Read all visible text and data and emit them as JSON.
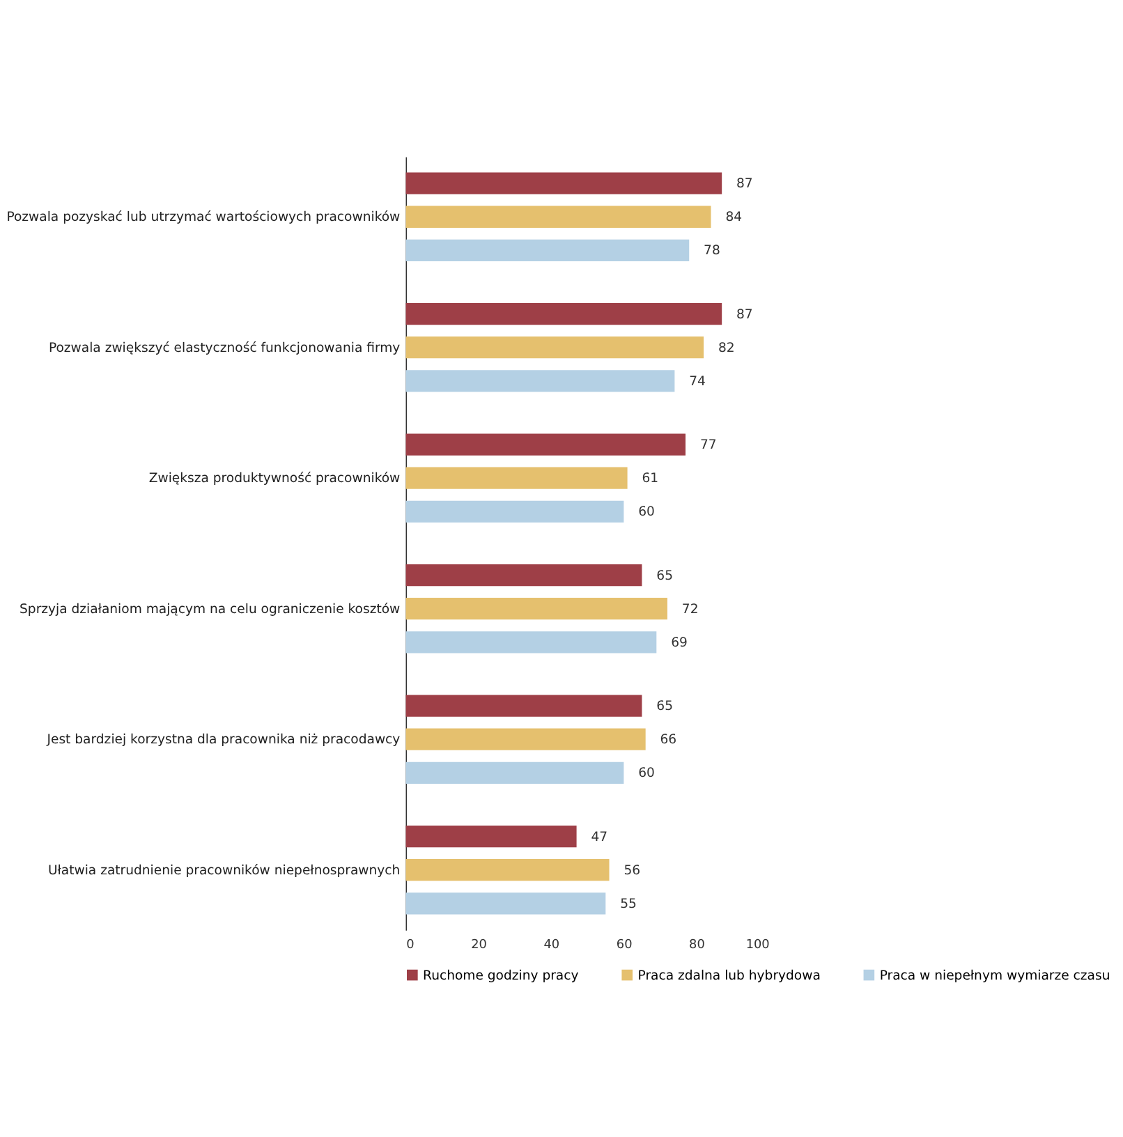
{
  "chart_data": {
    "type": "bar",
    "orientation": "horizontal",
    "categories": [
      "Pozwala pozyskać lub utrzymać wartościowych pracowników",
      "Pozwala zwiększyć elastyczność funkcjonowania firmy",
      "Zwiększa produktywność pracowników",
      "Sprzyja działaniom mającym na celu ograniczenie kosztów",
      "Jest bardziej korzystna dla pracownika niż pracodawcy",
      "Ułatwia zatrudnienie pracowników niepełnosprawnych"
    ],
    "series": [
      {
        "name": "Ruchome godziny pracy",
        "color": "#9e3f47",
        "values": [
          87,
          87,
          77,
          65,
          65,
          47
        ]
      },
      {
        "name": "Praca zdalna lub hybrydowa",
        "color": "#e5c06e",
        "values": [
          84,
          82,
          61,
          72,
          66,
          56
        ]
      },
      {
        "name": "Praca w niepełnym wymiarze czasu",
        "color": "#b4d0e4",
        "values": [
          78,
          74,
          60,
          69,
          60,
          55
        ]
      }
    ],
    "xlim": [
      0,
      100
    ],
    "xticks": [
      0,
      20,
      40,
      60,
      80,
      100
    ],
    "data_labels": true,
    "grid": false,
    "legend": "bottom"
  }
}
